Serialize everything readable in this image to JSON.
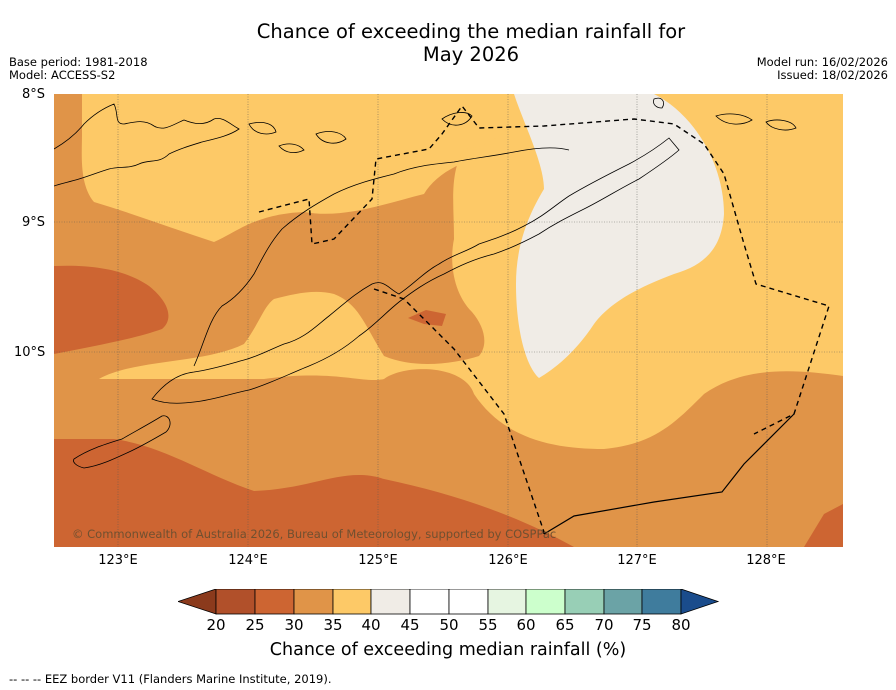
{
  "title": {
    "line1": "Chance of exceeding the median rainfall for",
    "line2": "May 2026"
  },
  "meta_left": {
    "base_period": "Base period: 1981-2018",
    "model": "Model: ACCESS-S2"
  },
  "meta_right": {
    "model_run": "Model run: 16/02/2026",
    "issued": "Issued: 18/02/2026"
  },
  "map": {
    "lat_labels": [
      "8°S",
      "9°S",
      "10°S"
    ],
    "lon_labels": [
      "123°E",
      "124°E",
      "125°E",
      "126°E",
      "127°E",
      "128°E"
    ],
    "copyright": "© Commonwealth of Australia 2026, Bureau of Meteorology, supported by COSPPac"
  },
  "colorbar": {
    "ticks": [
      "20",
      "25",
      "30",
      "35",
      "40",
      "45",
      "50",
      "55",
      "60",
      "65",
      "70",
      "75",
      "80"
    ],
    "label": "Chance of exceeding median rainfall (%)",
    "colors": {
      "below20": "#8b3a1c",
      "c20_25": "#b1502a",
      "c25_30": "#cd6532",
      "c30_35": "#e09448",
      "c35_40": "#fdc967",
      "c40_45": "#f0ece6",
      "c45_50": "#ffffff",
      "c50_55": "#ffffff",
      "c55_60": "#e6f5e1",
      "c60_65": "#ccffcc",
      "c65_70": "#98cfb6",
      "c70_75": "#6ba3a6",
      "c75_80": "#3f7c9d",
      "above80": "#1a4c8c"
    }
  },
  "footnote": "--  --  -- EEZ border V11 (Flanders Marine Institute, 2019)."
}
